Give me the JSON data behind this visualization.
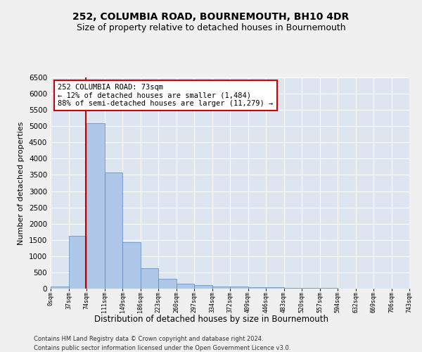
{
  "title": "252, COLUMBIA ROAD, BOURNEMOUTH, BH10 4DR",
  "subtitle": "Size of property relative to detached houses in Bournemouth",
  "xlabel": "Distribution of detached houses by size in Bournemouth",
  "ylabel": "Number of detached properties",
  "bar_values": [
    75,
    1620,
    5090,
    3580,
    1420,
    620,
    300,
    145,
    105,
    75,
    60,
    50,
    50,
    30,
    20,
    15,
    10,
    8,
    5,
    3
  ],
  "bin_labels": [
    "0sqm",
    "37sqm",
    "74sqm",
    "111sqm",
    "149sqm",
    "186sqm",
    "223sqm",
    "260sqm",
    "297sqm",
    "334sqm",
    "372sqm",
    "409sqm",
    "446sqm",
    "483sqm",
    "520sqm",
    "557sqm",
    "594sqm",
    "632sqm",
    "669sqm",
    "706sqm",
    "743sqm"
  ],
  "bar_color": "#aec6e8",
  "bar_edge_color": "#5588bb",
  "ylim": [
    0,
    6500
  ],
  "yticks": [
    0,
    500,
    1000,
    1500,
    2000,
    2500,
    3000,
    3500,
    4000,
    4500,
    5000,
    5500,
    6000,
    6500
  ],
  "property_line_x": 73,
  "bin_width": 37,
  "annotation_text": "252 COLUMBIA ROAD: 73sqm\n← 12% of detached houses are smaller (1,484)\n88% of semi-detached houses are larger (11,279) →",
  "annotation_box_color": "#ffffff",
  "annotation_box_edge_color": "#cc0000",
  "property_line_color": "#cc0000",
  "footnote1": "Contains HM Land Registry data © Crown copyright and database right 2024.",
  "footnote2": "Contains public sector information licensed under the Open Government Licence v3.0.",
  "bg_color": "#dde6f0",
  "grid_color": "#ffffff",
  "fig_bg_color": "#f0f0f0",
  "title_fontsize": 10,
  "subtitle_fontsize": 9
}
